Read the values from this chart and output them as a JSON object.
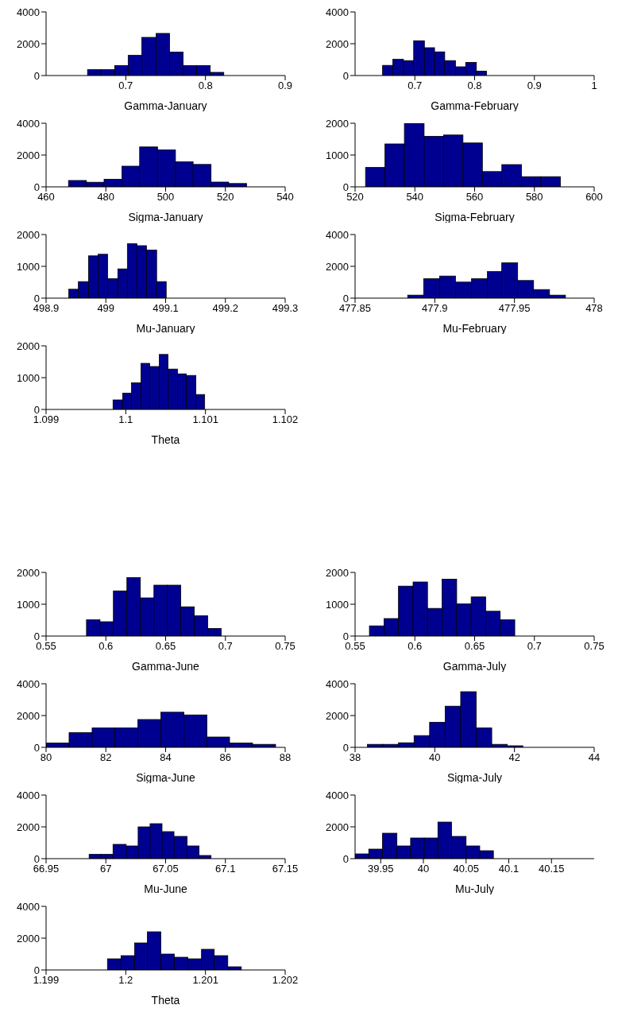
{
  "chart_data": [
    {
      "type": "histogram",
      "xlabel": "Gamma-January",
      "color": "#000090",
      "bins": [
        0.652,
        0.669,
        0.686,
        0.703,
        0.72,
        0.738,
        0.755,
        0.772,
        0.789,
        0.806,
        0.823
      ],
      "values": [
        370,
        370,
        630,
        1270,
        2400,
        2650,
        1480,
        630,
        630,
        200
      ],
      "xlim": [
        0.6,
        0.9
      ],
      "xticks": [
        0.7,
        0.8,
        0.9
      ],
      "ylim": [
        0,
        4000
      ],
      "yticks": [
        0,
        2000,
        4000
      ]
    },
    {
      "type": "histogram",
      "xlabel": "Gamma-February",
      "color": "#000090",
      "bins": [
        0.646,
        0.663,
        0.681,
        0.698,
        0.716,
        0.733,
        0.75,
        0.768,
        0.785,
        0.803,
        0.82
      ],
      "values": [
        640,
        1020,
        940,
        2190,
        1750,
        1490,
        940,
        550,
        830,
        280
      ],
      "xlim": [
        0.6,
        1
      ],
      "xticks": [
        0.7,
        0.8,
        0.9,
        1
      ],
      "ylim": [
        0,
        4000
      ],
      "yticks": [
        0,
        2000,
        4000
      ]
    },
    {
      "type": "histogram",
      "xlabel": "Sigma-January",
      "color": "#000090",
      "bins": [
        467.5,
        473.5,
        479.4,
        485.4,
        491.3,
        497.3,
        503.3,
        509.2,
        515.2,
        521.1,
        527.1
      ],
      "values": [
        400,
        290,
        480,
        1300,
        2510,
        2320,
        1580,
        1410,
        300,
        210
      ],
      "xlim": [
        460,
        540
      ],
      "xticks": [
        460,
        480,
        500,
        520,
        540
      ],
      "ylim": [
        0,
        4000
      ],
      "yticks": [
        0,
        2000,
        4000
      ]
    },
    {
      "type": "histogram",
      "xlabel": "Sigma-February",
      "color": "#000090",
      "bins": [
        523.5,
        530.0,
        536.5,
        543.1,
        549.6,
        556.1,
        562.6,
        569.1,
        575.7,
        582.2,
        588.7
      ],
      "values": [
        610,
        1350,
        2000,
        1590,
        1630,
        1380,
        480,
        700,
        320,
        320
      ],
      "xlim": [
        520,
        600
      ],
      "xticks": [
        520,
        540,
        560,
        580,
        600
      ],
      "ylim": [
        0,
        2000
      ],
      "yticks": [
        0,
        1000,
        2000
      ]
    },
    {
      "type": "histogram",
      "xlabel": "Mu-January",
      "color": "#000090",
      "bins": [
        498.938,
        498.954,
        498.971,
        498.987,
        499.003,
        499.02,
        499.036,
        499.052,
        499.068,
        499.085,
        499.101
      ],
      "values": [
        280,
        520,
        1330,
        1380,
        610,
        920,
        1710,
        1650,
        1510,
        520
      ],
      "xlim": [
        498.9,
        499.3
      ],
      "xticks": [
        498.9,
        499,
        499.1,
        499.2,
        499.3
      ],
      "ylim": [
        0,
        2000
      ],
      "yticks": [
        0,
        1000,
        2000
      ]
    },
    {
      "type": "histogram",
      "xlabel": "Mu-February",
      "color": "#000090",
      "bins": [
        477.883,
        477.893,
        477.903,
        477.913,
        477.923,
        477.933,
        477.942,
        477.952,
        477.962,
        477.972,
        477.982
      ],
      "values": [
        190,
        1220,
        1390,
        1010,
        1220,
        1670,
        2220,
        1110,
        540,
        190
      ],
      "xlim": [
        477.85,
        478
      ],
      "xticks": [
        477.85,
        477.9,
        477.95,
        478
      ],
      "ylim": [
        0,
        4000
      ],
      "yticks": [
        0,
        2000,
        4000
      ]
    },
    {
      "type": "histogram",
      "xlabel": "Theta",
      "color": "#000090",
      "bins": [
        1.09984,
        1.09996,
        1.10007,
        1.10019,
        1.1003,
        1.10042,
        1.10053,
        1.10065,
        1.10076,
        1.10088,
        1.10099
      ],
      "values": [
        300,
        510,
        840,
        1450,
        1350,
        1730,
        1270,
        1120,
        1070,
        470
      ],
      "xlim": [
        1.099,
        1.102
      ],
      "xticks": [
        1.099,
        1.1,
        1.101,
        1.102
      ],
      "ylim": [
        0,
        2000
      ],
      "yticks": [
        0,
        1000,
        2000
      ]
    },
    {
      "type": "histogram",
      "xlabel": "Gamma-June",
      "color": "#000090",
      "bins": [
        0.5838,
        0.5951,
        0.6063,
        0.6176,
        0.6289,
        0.6402,
        0.6514,
        0.6627,
        0.674,
        0.6852,
        0.6965
      ],
      "values": [
        510,
        450,
        1420,
        1840,
        1200,
        1600,
        1600,
        920,
        640,
        240
      ],
      "xlim": [
        0.55,
        0.75
      ],
      "xticks": [
        0.55,
        0.6,
        0.65,
        0.7,
        0.75
      ],
      "ylim": [
        0,
        2000
      ],
      "yticks": [
        0,
        1000,
        2000
      ]
    },
    {
      "type": "histogram",
      "xlabel": "Gamma-July",
      "color": "#000090",
      "bins": [
        0.562,
        0.5742,
        0.5863,
        0.5985,
        0.6106,
        0.6228,
        0.635,
        0.6471,
        0.6593,
        0.6714,
        0.6836
      ],
      "values": [
        320,
        550,
        1570,
        1700,
        870,
        1790,
        1010,
        1230,
        780,
        510
      ],
      "xlim": [
        0.55,
        0.75
      ],
      "xticks": [
        0.55,
        0.6,
        0.65,
        0.7,
        0.75
      ],
      "ylim": [
        0,
        2000
      ],
      "yticks": [
        0,
        1000,
        2000
      ]
    },
    {
      "type": "histogram",
      "xlabel": "Sigma-June",
      "color": "#000090",
      "bins": [
        80,
        80.77,
        81.54,
        82.3,
        83.07,
        83.84,
        84.61,
        85.38,
        86.14,
        86.91,
        87.68
      ],
      "values": [
        270,
        930,
        1220,
        1220,
        1750,
        2210,
        2040,
        650,
        270,
        190
      ],
      "xlim": [
        80,
        88
      ],
      "xticks": [
        80,
        82,
        84,
        86,
        88
      ],
      "ylim": [
        0,
        4000
      ],
      "yticks": [
        0,
        2000,
        4000
      ]
    },
    {
      "type": "histogram",
      "xlabel": "Sigma-July",
      "color": "#000090",
      "bins": [
        38.31,
        38.7,
        39.09,
        39.48,
        39.87,
        40.26,
        40.65,
        41.04,
        41.43,
        41.82,
        42.21
      ],
      "values": [
        190,
        190,
        290,
        740,
        1580,
        2590,
        3500,
        1220,
        190,
        100
      ],
      "xlim": [
        38,
        44
      ],
      "xticks": [
        38,
        40,
        42,
        44
      ],
      "ylim": [
        0,
        4000
      ],
      "yticks": [
        0,
        2000,
        4000
      ]
    },
    {
      "type": "histogram",
      "xlabel": "Mu-June",
      "color": "#000090",
      "bins": [
        66.986,
        66.996,
        67.006,
        67.017,
        67.027,
        67.037,
        67.047,
        67.057,
        67.068,
        67.078,
        67.088
      ],
      "values": [
        270,
        270,
        900,
        800,
        2000,
        2200,
        1700,
        1400,
        800,
        200
      ],
      "xlim": [
        66.95,
        67.15
      ],
      "xticks": [
        66.95,
        67,
        67.05,
        67.1,
        67.15
      ],
      "ylim": [
        0,
        4000
      ],
      "yticks": [
        0,
        2000,
        4000
      ]
    },
    {
      "type": "histogram",
      "xlabel": "Mu-July",
      "color": "#000090",
      "bins": [
        39.92,
        39.936,
        39.952,
        39.969,
        39.985,
        40.001,
        40.017,
        40.033,
        40.05,
        40.066,
        40.082
      ],
      "values": [
        300,
        600,
        1600,
        800,
        1300,
        1300,
        2300,
        1400,
        800,
        500
      ],
      "xlim": [
        39.92,
        40.2
      ],
      "xticks": [
        39.95,
        40,
        40.05,
        40.1,
        40.15
      ],
      "ylim": [
        0,
        4000
      ],
      "yticks": [
        0,
        2000,
        4000
      ]
    },
    {
      "type": "histogram",
      "xlabel": "Theta",
      "color": "#000090",
      "bins": [
        1.19977,
        1.19994,
        1.20011,
        1.20027,
        1.20044,
        1.20061,
        1.20078,
        1.20095,
        1.20111,
        1.20128,
        1.20145
      ],
      "values": [
        700,
        900,
        1700,
        2400,
        1000,
        800,
        700,
        1300,
        900,
        200
      ],
      "xlim": [
        1.199,
        1.202
      ],
      "xticks": [
        1.199,
        1.2,
        1.201,
        1.202
      ],
      "ylim": [
        0,
        4000
      ],
      "yticks": [
        0,
        2000,
        4000
      ]
    }
  ]
}
